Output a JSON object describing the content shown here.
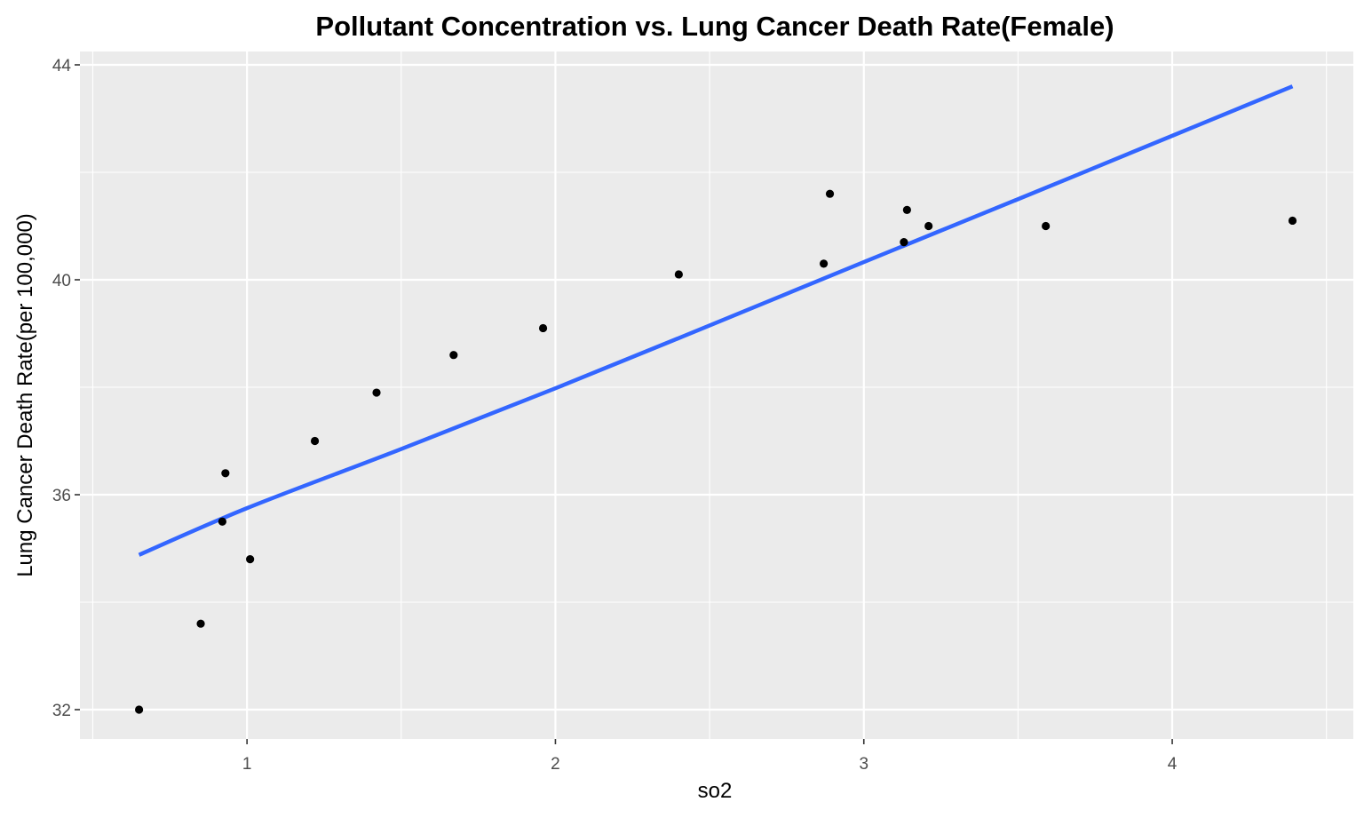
{
  "chart_data": {
    "type": "scatter",
    "title": "Pollutant Concentration vs. Lung Cancer Death Rate(Female)",
    "xlabel": "so2",
    "ylabel": "Lung Cancer Death Rate(per 100,000)",
    "xlim": [
      0.5,
      4.5
    ],
    "ylim": [
      31.5,
      44.0
    ],
    "x_ticks": [
      1,
      2,
      3,
      4
    ],
    "x_tick_labels": [
      "1",
      "2",
      "3",
      "4"
    ],
    "x_minor_ticks": [
      0.5,
      1.5,
      2.5,
      3.5,
      4.5
    ],
    "y_ticks": [
      32,
      36,
      40,
      44
    ],
    "y_tick_labels": [
      "32",
      "36",
      "40",
      "44"
    ],
    "y_minor_ticks": [
      34,
      38,
      42
    ],
    "grid": true,
    "legend": "none",
    "colors": {
      "panel": "#ebebeb",
      "grid": "#ffffff",
      "point": "#000000",
      "trend": "#3366ff"
    },
    "points": [
      {
        "x": 0.65,
        "y": 32.0
      },
      {
        "x": 0.85,
        "y": 33.6
      },
      {
        "x": 0.92,
        "y": 35.5
      },
      {
        "x": 0.93,
        "y": 36.4
      },
      {
        "x": 1.01,
        "y": 34.8
      },
      {
        "x": 1.22,
        "y": 37.0
      },
      {
        "x": 1.42,
        "y": 37.9
      },
      {
        "x": 1.67,
        "y": 38.6
      },
      {
        "x": 1.96,
        "y": 39.1
      },
      {
        "x": 2.4,
        "y": 40.1
      },
      {
        "x": 2.87,
        "y": 40.3
      },
      {
        "x": 2.89,
        "y": 41.6
      },
      {
        "x": 3.13,
        "y": 40.7
      },
      {
        "x": 3.14,
        "y": 41.3
      },
      {
        "x": 3.21,
        "y": 41.0
      },
      {
        "x": 3.59,
        "y": 41.0
      },
      {
        "x": 4.39,
        "y": 41.1
      }
    ],
    "trend_line": {
      "type": "smooth",
      "x": [
        0.65,
        1.0,
        1.5,
        2.0,
        2.5,
        3.0,
        3.5,
        4.0,
        4.39
      ],
      "y": [
        34.88,
        35.75,
        36.85,
        37.98,
        39.15,
        40.33,
        41.5,
        42.68,
        43.6
      ]
    }
  }
}
